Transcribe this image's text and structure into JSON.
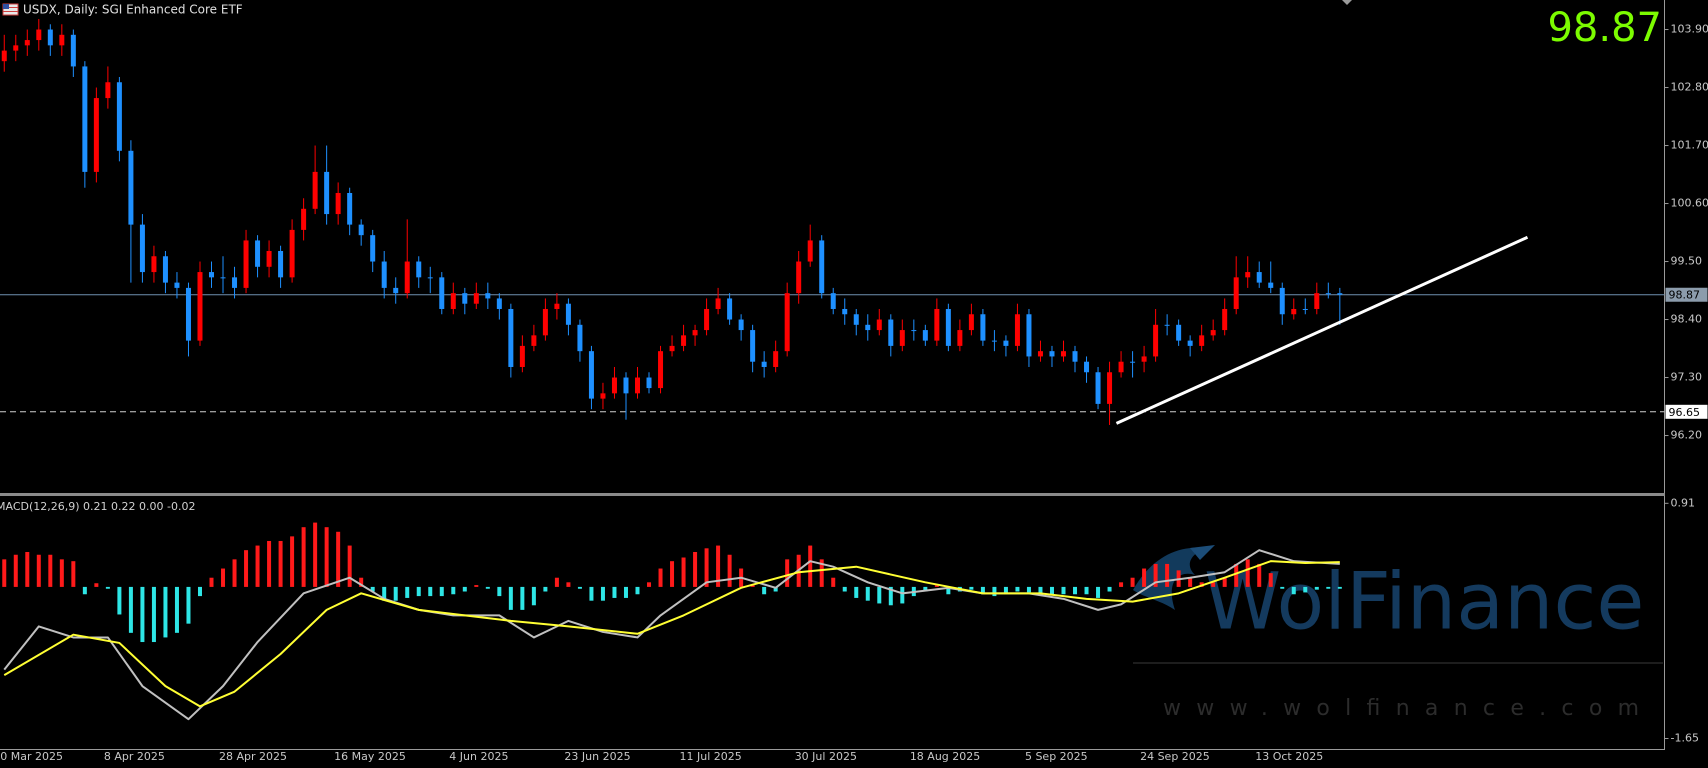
{
  "header": {
    "symbol_line": "USDX, Daily:  SGI Enhanced Core ETF",
    "last_price": 98.87
  },
  "watermark": {
    "brand": "WolFinance",
    "url": "www.wolfinance.com"
  },
  "chart_data": [
    {
      "type": "candlestick",
      "categories": [
        "0 Mar 2025",
        null,
        null,
        null,
        null,
        null,
        null,
        null,
        null,
        "8 Apr 2025",
        null,
        null,
        null,
        null,
        null,
        null,
        null,
        null,
        null,
        "28 Apr 2025",
        null,
        null,
        null,
        null,
        null,
        null,
        null,
        null,
        null,
        "16 May 2025",
        null,
        null,
        null,
        null,
        null,
        null,
        null,
        null,
        null,
        "4 Jun 2025",
        null,
        null,
        null,
        null,
        null,
        null,
        null,
        null,
        null,
        "23 Jun 2025",
        null,
        null,
        null,
        null,
        null,
        null,
        null,
        null,
        null,
        "11 Jul 2025",
        null,
        null,
        null,
        null,
        null,
        null,
        null,
        null,
        null,
        "30 Jul 2025",
        null,
        null,
        null,
        null,
        null,
        null,
        null,
        null,
        null,
        "18 Aug 2025",
        null,
        null,
        null,
        null,
        null,
        null,
        null,
        null,
        null,
        "5 Sep 2025",
        null,
        null,
        null,
        null,
        null,
        null,
        null,
        null,
        null,
        "24 Sep 2025",
        null,
        null,
        null,
        null,
        null,
        null,
        null,
        null,
        null,
        "13 Oct 2025",
        null,
        null,
        null,
        null,
        null,
        null,
        null
      ],
      "ohlc": [
        [
          103.3,
          103.8,
          103.1,
          103.5
        ],
        [
          103.5,
          103.8,
          103.3,
          103.6
        ],
        [
          103.6,
          103.9,
          103.4,
          103.7
        ],
        [
          103.7,
          104.1,
          103.5,
          103.9
        ],
        [
          103.9,
          104.0,
          103.4,
          103.6
        ],
        [
          103.6,
          104.0,
          103.4,
          103.8
        ],
        [
          103.8,
          103.9,
          103.0,
          103.2
        ],
        [
          103.2,
          103.3,
          100.9,
          101.2
        ],
        [
          101.2,
          102.8,
          101.0,
          102.6
        ],
        [
          102.6,
          103.2,
          102.4,
          102.9
        ],
        [
          102.9,
          103.0,
          101.4,
          101.6
        ],
        [
          101.6,
          101.8,
          99.1,
          100.2
        ],
        [
          100.2,
          100.4,
          99.1,
          99.3
        ],
        [
          99.3,
          99.8,
          99.1,
          99.6
        ],
        [
          99.6,
          99.7,
          98.9,
          99.1
        ],
        [
          99.1,
          99.3,
          98.8,
          99.0
        ],
        [
          99.0,
          99.1,
          97.7,
          98.0
        ],
        [
          98.0,
          99.5,
          97.9,
          99.3
        ],
        [
          99.3,
          99.5,
          99.0,
          99.2
        ],
        [
          99.2,
          99.6,
          98.9,
          99.2
        ],
        [
          99.2,
          99.4,
          98.8,
          99.0
        ],
        [
          99.0,
          100.1,
          98.9,
          99.9
        ],
        [
          99.9,
          100.0,
          99.2,
          99.4
        ],
        [
          99.4,
          99.9,
          99.2,
          99.7
        ],
        [
          99.7,
          99.8,
          99.0,
          99.2
        ],
        [
          99.2,
          100.3,
          99.1,
          100.1
        ],
        [
          100.1,
          100.7,
          99.9,
          100.5
        ],
        [
          100.5,
          101.7,
          100.4,
          101.2
        ],
        [
          101.2,
          101.7,
          100.2,
          100.4
        ],
        [
          100.4,
          101.0,
          100.2,
          100.8
        ],
        [
          100.8,
          100.9,
          100.0,
          100.2
        ],
        [
          100.2,
          100.3,
          99.8,
          100.0
        ],
        [
          100.0,
          100.1,
          99.3,
          99.5
        ],
        [
          99.5,
          99.7,
          98.8,
          99.0
        ],
        [
          99.0,
          99.2,
          98.7,
          98.9
        ],
        [
          98.9,
          100.3,
          98.8,
          99.5
        ],
        [
          99.5,
          99.6,
          99.0,
          99.2
        ],
        [
          99.2,
          99.4,
          98.9,
          99.2
        ],
        [
          99.2,
          99.3,
          98.5,
          98.6
        ],
        [
          98.6,
          99.1,
          98.5,
          98.9
        ],
        [
          98.9,
          99.0,
          98.5,
          98.7
        ],
        [
          98.7,
          99.1,
          98.6,
          98.9
        ],
        [
          98.9,
          99.1,
          98.6,
          98.8
        ],
        [
          98.8,
          98.9,
          98.4,
          98.6
        ],
        [
          98.6,
          98.7,
          97.3,
          97.5
        ],
        [
          97.5,
          98.1,
          97.4,
          97.9
        ],
        [
          97.9,
          98.3,
          97.8,
          98.1
        ],
        [
          98.1,
          98.8,
          98.0,
          98.6
        ],
        [
          98.6,
          98.9,
          98.4,
          98.7
        ],
        [
          98.7,
          98.8,
          98.1,
          98.3
        ],
        [
          98.3,
          98.4,
          97.6,
          97.8
        ],
        [
          97.8,
          97.9,
          96.7,
          96.9
        ],
        [
          96.9,
          97.2,
          96.7,
          97.0
        ],
        [
          97.0,
          97.5,
          96.9,
          97.3
        ],
        [
          97.3,
          97.4,
          96.5,
          97.0
        ],
        [
          97.0,
          97.5,
          96.9,
          97.3
        ],
        [
          97.3,
          97.4,
          97.0,
          97.1
        ],
        [
          97.1,
          97.9,
          97.0,
          97.8
        ],
        [
          97.8,
          98.1,
          97.7,
          97.9
        ],
        [
          97.9,
          98.3,
          97.8,
          98.1
        ],
        [
          98.1,
          98.3,
          97.9,
          98.2
        ],
        [
          98.2,
          98.8,
          98.1,
          98.6
        ],
        [
          98.6,
          99.0,
          98.5,
          98.8
        ],
        [
          98.8,
          98.9,
          98.3,
          98.4
        ],
        [
          98.4,
          98.5,
          98.0,
          98.2
        ],
        [
          98.2,
          98.3,
          97.4,
          97.6
        ],
        [
          97.6,
          97.8,
          97.3,
          97.5
        ],
        [
          97.5,
          98.0,
          97.4,
          97.8
        ],
        [
          97.8,
          99.1,
          97.7,
          98.9
        ],
        [
          98.9,
          99.7,
          98.7,
          99.5
        ],
        [
          99.5,
          100.2,
          99.4,
          99.9
        ],
        [
          99.9,
          100.0,
          98.8,
          98.9
        ],
        [
          98.9,
          99.0,
          98.5,
          98.6
        ],
        [
          98.6,
          98.8,
          98.3,
          98.5
        ],
        [
          98.5,
          98.6,
          98.1,
          98.3
        ],
        [
          98.3,
          98.5,
          98.0,
          98.2
        ],
        [
          98.2,
          98.6,
          98.1,
          98.4
        ],
        [
          98.4,
          98.5,
          97.7,
          97.9
        ],
        [
          97.9,
          98.4,
          97.8,
          98.2
        ],
        [
          98.2,
          98.4,
          98.0,
          98.2
        ],
        [
          98.2,
          98.3,
          97.9,
          98.0
        ],
        [
          98.0,
          98.8,
          97.9,
          98.6
        ],
        [
          98.6,
          98.7,
          97.8,
          97.9
        ],
        [
          97.9,
          98.4,
          97.8,
          98.2
        ],
        [
          98.2,
          98.7,
          98.1,
          98.5
        ],
        [
          98.5,
          98.6,
          97.9,
          98.0
        ],
        [
          98.0,
          98.2,
          97.8,
          98.0
        ],
        [
          98.0,
          98.1,
          97.7,
          97.9
        ],
        [
          97.9,
          98.7,
          97.8,
          98.5
        ],
        [
          98.5,
          98.6,
          97.5,
          97.7
        ],
        [
          97.7,
          98.0,
          97.6,
          97.8
        ],
        [
          97.8,
          97.9,
          97.5,
          97.7
        ],
        [
          97.7,
          98.0,
          97.6,
          97.8
        ],
        [
          97.8,
          97.9,
          97.4,
          97.6
        ],
        [
          97.6,
          97.7,
          97.2,
          97.4
        ],
        [
          97.4,
          97.5,
          96.7,
          96.8
        ],
        [
          96.8,
          97.6,
          96.4,
          97.4
        ],
        [
          97.4,
          97.8,
          97.3,
          97.6
        ],
        [
          97.6,
          97.8,
          97.3,
          97.6
        ],
        [
          97.6,
          97.9,
          97.4,
          97.7
        ],
        [
          97.7,
          98.6,
          97.6,
          98.3
        ],
        [
          98.3,
          98.5,
          98.1,
          98.3
        ],
        [
          98.3,
          98.4,
          97.9,
          98.0
        ],
        [
          98.0,
          98.1,
          97.7,
          97.9
        ],
        [
          97.9,
          98.3,
          97.8,
          98.1
        ],
        [
          98.1,
          98.4,
          98.0,
          98.2
        ],
        [
          98.2,
          98.8,
          98.1,
          98.6
        ],
        [
          98.6,
          99.6,
          98.5,
          99.2
        ],
        [
          99.2,
          99.6,
          99.0,
          99.3
        ],
        [
          99.3,
          99.5,
          99.0,
          99.1
        ],
        [
          99.1,
          99.5,
          98.9,
          99.0
        ],
        [
          99.0,
          99.1,
          98.3,
          98.5
        ],
        [
          98.5,
          98.8,
          98.4,
          98.6
        ],
        [
          98.6,
          98.8,
          98.5,
          98.6
        ],
        [
          98.6,
          99.1,
          98.5,
          98.9
        ],
        [
          98.9,
          99.1,
          98.8,
          98.9
        ],
        [
          98.9,
          99.0,
          98.3,
          98.87
        ]
      ],
      "up_color": "#ff0000",
      "down_color": "#1e90ff",
      "xlim": [
        -0.37,
        144.2
      ],
      "ylim": [
        95.11,
        104.46
      ],
      "yticks": [
        {
          "value": 103.9,
          "label": "103.90"
        },
        {
          "value": 102.8,
          "label": "102.80"
        },
        {
          "value": 101.7,
          "label": "101.70"
        },
        {
          "value": 100.6,
          "label": "100.60"
        },
        {
          "value": 99.5,
          "label": "99.50"
        },
        {
          "value": 98.4,
          "label": "98.40"
        },
        {
          "value": 97.3,
          "label": "97.30"
        },
        {
          "value": 96.2,
          "label": "96.20"
        }
      ],
      "hlines": [
        {
          "value": 98.87,
          "style": "solid",
          "color": "#6f8fb0",
          "label_color": "#8c9cac"
        },
        {
          "value": 96.65,
          "style": "dashed",
          "color": "#d0d0d0",
          "label_color": "#ffffff"
        }
      ],
      "trendline": {
        "x": [
          96.6,
          132.3
        ],
        "y": [
          96.43,
          99.96
        ],
        "color": "#ffffff"
      }
    },
    {
      "type": "macd",
      "title": "MACD(12,26,9) 0.21 0.22 0.00 -0.02",
      "xlim": [
        -0.37,
        144.2
      ],
      "ylim": [
        -1.65,
        0.91
      ],
      "yticks": [
        0.91,
        -1.65
      ],
      "histogram": {
        "up_color": "#ff1a1a",
        "down_color": "#2ee6e6",
        "values": [
          0.3,
          0.35,
          0.38,
          0.35,
          0.35,
          0.3,
          0.28,
          -0.08,
          0.04,
          -0.02,
          -0.3,
          -0.5,
          -0.6,
          -0.6,
          -0.55,
          -0.5,
          -0.4,
          -0.1,
          0.1,
          0.2,
          0.3,
          0.4,
          0.45,
          0.5,
          0.5,
          0.55,
          0.65,
          0.7,
          0.65,
          0.6,
          0.45,
          0.1,
          -0.05,
          -0.15,
          -0.15,
          -0.12,
          -0.1,
          -0.1,
          -0.1,
          -0.08,
          -0.05,
          0.02,
          -0.02,
          -0.1,
          -0.25,
          -0.25,
          -0.2,
          -0.05,
          0.1,
          0.05,
          -0.02,
          -0.15,
          -0.15,
          -0.12,
          -0.12,
          -0.08,
          0.05,
          0.2,
          0.28,
          0.32,
          0.38,
          0.42,
          0.45,
          0.35,
          0.2,
          0.02,
          -0.08,
          -0.05,
          0.3,
          0.35,
          0.45,
          0.3,
          0.1,
          -0.05,
          -0.12,
          -0.15,
          -0.18,
          -0.2,
          -0.18,
          -0.1,
          -0.05,
          0.02,
          -0.08,
          -0.05,
          -0.03,
          -0.08,
          -0.1,
          -0.08,
          -0.05,
          -0.06,
          -0.08,
          -0.08,
          -0.08,
          -0.08,
          -0.08,
          -0.12,
          -0.05,
          0.05,
          0.1,
          0.2,
          0.25,
          0.25,
          0.18,
          0.1,
          0.05,
          0.05,
          0.1,
          0.25,
          0.3,
          0.25,
          0.15,
          -0.02,
          -0.08,
          -0.06,
          -0.03,
          -0.02,
          -0.02
        ]
      },
      "macd_line": {
        "color": "#c0c0c0",
        "x": [
          0,
          3,
          6,
          9,
          12,
          16,
          19,
          22,
          26,
          30,
          33,
          36,
          39,
          43,
          46,
          49,
          52,
          55,
          57,
          61,
          64,
          67,
          70,
          72,
          75,
          78,
          82,
          85,
          89,
          92,
          95,
          97,
          100,
          103,
          106,
          109,
          112,
          116
        ],
        "values": [
          -0.9,
          -0.43,
          -0.55,
          -0.55,
          -1.08,
          -1.44,
          -1.08,
          -0.6,
          -0.07,
          0.1,
          -0.13,
          -0.25,
          -0.31,
          -0.31,
          -0.55,
          -0.37,
          -0.49,
          -0.55,
          -0.31,
          0.05,
          0.1,
          -0.01,
          0.28,
          0.22,
          0.05,
          -0.07,
          -0.01,
          -0.07,
          -0.07,
          -0.13,
          -0.25,
          -0.19,
          0.05,
          0.1,
          0.16,
          0.4,
          0.28,
          0.25
        ]
      },
      "signal_line": {
        "color": "#ffff33",
        "x": [
          0,
          6,
          10,
          14,
          17,
          20,
          24,
          28,
          31,
          36,
          40,
          44,
          49,
          55,
          59,
          64,
          69,
          74,
          80,
          85,
          90,
          94,
          98,
          102,
          106,
          110,
          113,
          116
        ],
        "values": [
          -0.96,
          -0.52,
          -0.61,
          -1.08,
          -1.3,
          -1.14,
          -0.73,
          -0.25,
          -0.07,
          -0.25,
          -0.31,
          -0.37,
          -0.43,
          -0.51,
          -0.31,
          -0.01,
          0.16,
          0.22,
          0.05,
          -0.07,
          -0.07,
          -0.13,
          -0.16,
          -0.07,
          0.1,
          0.28,
          0.26,
          0.27
        ]
      }
    }
  ]
}
